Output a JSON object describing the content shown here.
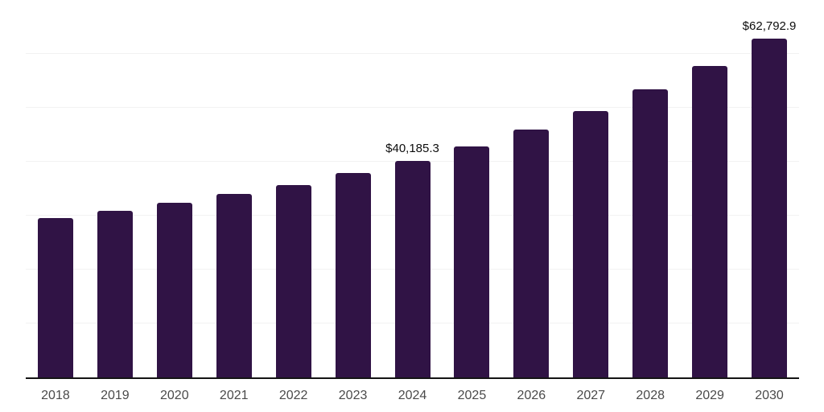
{
  "chart_data": {
    "type": "bar",
    "title": "",
    "xlabel": "",
    "ylabel": "",
    "categories": [
      "2018",
      "2019",
      "2020",
      "2021",
      "2022",
      "2023",
      "2024",
      "2025",
      "2026",
      "2027",
      "2028",
      "2029",
      "2030"
    ],
    "values": [
      29500,
      30900,
      32350,
      34000,
      35700,
      37850,
      40185.3,
      42800,
      45900,
      49400,
      53500,
      57800,
      62792.9
    ],
    "value_labels": {
      "2024": "$40,185.3",
      "2030": "$62,792.9"
    },
    "ylim": [
      0,
      70000
    ],
    "gridline_step": 10000,
    "grid": "horizontal",
    "legend": "none",
    "colors": {
      "bar": "#301345",
      "gridline": "#f2f2f2",
      "axis_line": "#141414",
      "tick_label": "#4a4a4a",
      "value_label": "#0d0d0d",
      "background": "#ffffff"
    }
  }
}
